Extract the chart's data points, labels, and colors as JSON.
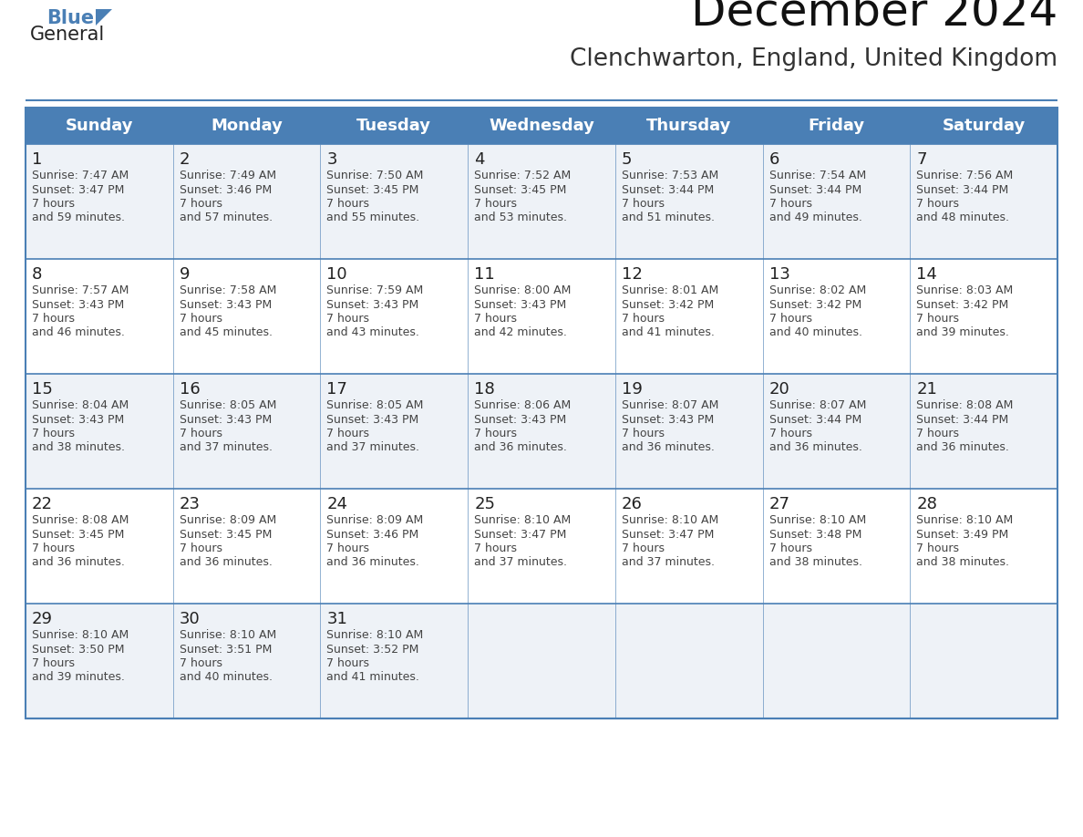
{
  "title": "December 2024",
  "subtitle": "Clenchwarton, England, United Kingdom",
  "days_of_week": [
    "Sunday",
    "Monday",
    "Tuesday",
    "Wednesday",
    "Thursday",
    "Friday",
    "Saturday"
  ],
  "header_bg": "#4a7fb5",
  "header_text": "#ffffff",
  "row_bg_light": "#eef2f7",
  "row_bg_white": "#ffffff",
  "border_color": "#4a7fb5",
  "text_color": "#444444",
  "day_num_color": "#222222",
  "title_color": "#111111",
  "subtitle_color": "#333333",
  "logo_general_color": "#222222",
  "logo_blue_color": "#4a7fb5",
  "logo_triangle_color": "#4a7fb5",
  "calendar_data": [
    [
      {
        "day": 1,
        "sunrise": "7:47 AM",
        "sunset": "3:47 PM",
        "daylight": "7 hours\nand 59 minutes."
      },
      {
        "day": 2,
        "sunrise": "7:49 AM",
        "sunset": "3:46 PM",
        "daylight": "7 hours\nand 57 minutes."
      },
      {
        "day": 3,
        "sunrise": "7:50 AM",
        "sunset": "3:45 PM",
        "daylight": "7 hours\nand 55 minutes."
      },
      {
        "day": 4,
        "sunrise": "7:52 AM",
        "sunset": "3:45 PM",
        "daylight": "7 hours\nand 53 minutes."
      },
      {
        "day": 5,
        "sunrise": "7:53 AM",
        "sunset": "3:44 PM",
        "daylight": "7 hours\nand 51 minutes."
      },
      {
        "day": 6,
        "sunrise": "7:54 AM",
        "sunset": "3:44 PM",
        "daylight": "7 hours\nand 49 minutes."
      },
      {
        "day": 7,
        "sunrise": "7:56 AM",
        "sunset": "3:44 PM",
        "daylight": "7 hours\nand 48 minutes."
      }
    ],
    [
      {
        "day": 8,
        "sunrise": "7:57 AM",
        "sunset": "3:43 PM",
        "daylight": "7 hours\nand 46 minutes."
      },
      {
        "day": 9,
        "sunrise": "7:58 AM",
        "sunset": "3:43 PM",
        "daylight": "7 hours\nand 45 minutes."
      },
      {
        "day": 10,
        "sunrise": "7:59 AM",
        "sunset": "3:43 PM",
        "daylight": "7 hours\nand 43 minutes."
      },
      {
        "day": 11,
        "sunrise": "8:00 AM",
        "sunset": "3:43 PM",
        "daylight": "7 hours\nand 42 minutes."
      },
      {
        "day": 12,
        "sunrise": "8:01 AM",
        "sunset": "3:42 PM",
        "daylight": "7 hours\nand 41 minutes."
      },
      {
        "day": 13,
        "sunrise": "8:02 AM",
        "sunset": "3:42 PM",
        "daylight": "7 hours\nand 40 minutes."
      },
      {
        "day": 14,
        "sunrise": "8:03 AM",
        "sunset": "3:42 PM",
        "daylight": "7 hours\nand 39 minutes."
      }
    ],
    [
      {
        "day": 15,
        "sunrise": "8:04 AM",
        "sunset": "3:43 PM",
        "daylight": "7 hours\nand 38 minutes."
      },
      {
        "day": 16,
        "sunrise": "8:05 AM",
        "sunset": "3:43 PM",
        "daylight": "7 hours\nand 37 minutes."
      },
      {
        "day": 17,
        "sunrise": "8:05 AM",
        "sunset": "3:43 PM",
        "daylight": "7 hours\nand 37 minutes."
      },
      {
        "day": 18,
        "sunrise": "8:06 AM",
        "sunset": "3:43 PM",
        "daylight": "7 hours\nand 36 minutes."
      },
      {
        "day": 19,
        "sunrise": "8:07 AM",
        "sunset": "3:43 PM",
        "daylight": "7 hours\nand 36 minutes."
      },
      {
        "day": 20,
        "sunrise": "8:07 AM",
        "sunset": "3:44 PM",
        "daylight": "7 hours\nand 36 minutes."
      },
      {
        "day": 21,
        "sunrise": "8:08 AM",
        "sunset": "3:44 PM",
        "daylight": "7 hours\nand 36 minutes."
      }
    ],
    [
      {
        "day": 22,
        "sunrise": "8:08 AM",
        "sunset": "3:45 PM",
        "daylight": "7 hours\nand 36 minutes."
      },
      {
        "day": 23,
        "sunrise": "8:09 AM",
        "sunset": "3:45 PM",
        "daylight": "7 hours\nand 36 minutes."
      },
      {
        "day": 24,
        "sunrise": "8:09 AM",
        "sunset": "3:46 PM",
        "daylight": "7 hours\nand 36 minutes."
      },
      {
        "day": 25,
        "sunrise": "8:10 AM",
        "sunset": "3:47 PM",
        "daylight": "7 hours\nand 37 minutes."
      },
      {
        "day": 26,
        "sunrise": "8:10 AM",
        "sunset": "3:47 PM",
        "daylight": "7 hours\nand 37 minutes."
      },
      {
        "day": 27,
        "sunrise": "8:10 AM",
        "sunset": "3:48 PM",
        "daylight": "7 hours\nand 38 minutes."
      },
      {
        "day": 28,
        "sunrise": "8:10 AM",
        "sunset": "3:49 PM",
        "daylight": "7 hours\nand 38 minutes."
      }
    ],
    [
      {
        "day": 29,
        "sunrise": "8:10 AM",
        "sunset": "3:50 PM",
        "daylight": "7 hours\nand 39 minutes."
      },
      {
        "day": 30,
        "sunrise": "8:10 AM",
        "sunset": "3:51 PM",
        "daylight": "7 hours\nand 40 minutes."
      },
      {
        "day": 31,
        "sunrise": "8:10 AM",
        "sunset": "3:52 PM",
        "daylight": "7 hours\nand 41 minutes."
      },
      null,
      null,
      null,
      null
    ]
  ]
}
